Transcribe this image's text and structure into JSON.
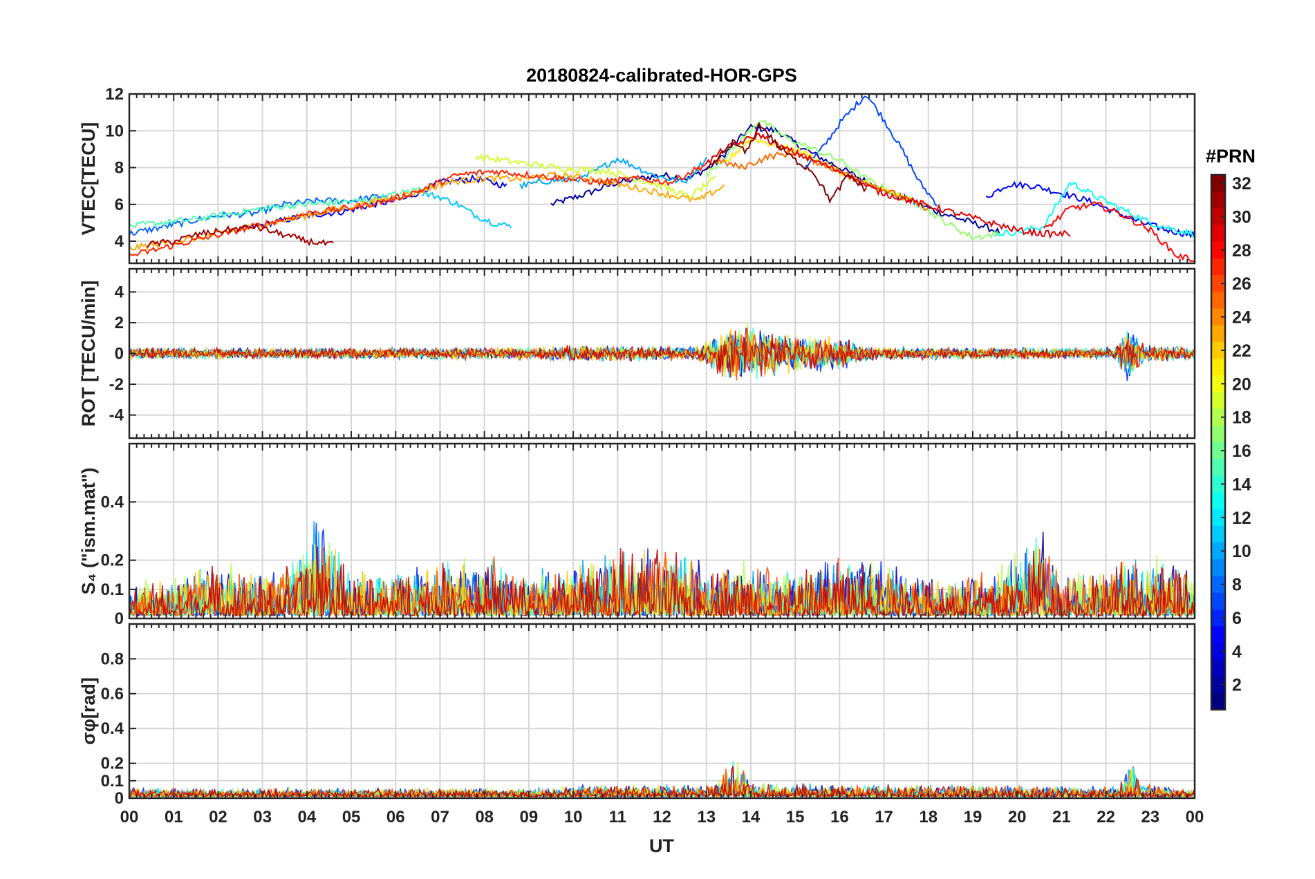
{
  "chart_data": {
    "type": "line",
    "title": "20180824-calibrated-HOR-GPS",
    "xlabel": "UT",
    "x_tick_labels": [
      "00",
      "01",
      "02",
      "03",
      "04",
      "05",
      "06",
      "07",
      "08",
      "09",
      "10",
      "11",
      "12",
      "13",
      "14",
      "15",
      "16",
      "17",
      "18",
      "19",
      "20",
      "21",
      "22",
      "23",
      "00"
    ],
    "xlim": [
      0,
      24
    ],
    "grid": true,
    "colorbar": {
      "label": "#PRN",
      "range": [
        1,
        32
      ],
      "ticks": [
        "2",
        "4",
        "6",
        "8",
        "10",
        "12",
        "14",
        "16",
        "18",
        "20",
        "22",
        "24",
        "26",
        "28",
        "30",
        "32"
      ],
      "colormap": "jet"
    },
    "panels": [
      {
        "id": "vtec",
        "ylabel": "VTEC[TECU]",
        "ylim": [
          2.8,
          12
        ],
        "yticks": [
          4,
          6,
          8,
          10,
          12
        ],
        "ytick_labels": [
          "4",
          "6",
          "8",
          "10",
          "12"
        ],
        "series": [
          {
            "prn": 2,
            "x": [
              9.5,
              10.2,
              11,
              12,
              12.6,
              13.2,
              14,
              14.6,
              15.2,
              16,
              16.8,
              17.5,
              18.2,
              19,
              19.6
            ],
            "y": [
              6.0,
              6.5,
              7.2,
              7.6,
              7.4,
              8.2,
              10.2,
              10.0,
              9.0,
              8.0,
              7.0,
              6.3,
              5.6,
              5.0,
              4.5
            ]
          },
          {
            "prn": 4,
            "x": [
              2.5,
              3.2,
              4,
              4.8,
              5.5,
              6.2,
              7,
              7.8,
              8.5
            ],
            "y": [
              4.6,
              5.0,
              5.4,
              5.6,
              6.0,
              6.3,
              7.2,
              7.4,
              7.0
            ]
          },
          {
            "prn": 5,
            "x": [
              19.3,
              19.8,
              20.4,
              21,
              21.6,
              22.2,
              22.8,
              23.4,
              24
            ],
            "y": [
              6.4,
              7.1,
              7.0,
              6.6,
              6.2,
              5.6,
              5.0,
              4.6,
              4.3
            ]
          },
          {
            "prn": 7,
            "x": [
              15.2,
              15.6,
              16,
              16.3,
              16.6,
              17,
              17.4,
              17.8,
              18.2
            ],
            "y": [
              8.0,
              9.0,
              10.4,
              11.2,
              12.0,
              10.6,
              9.0,
              7.2,
              6.0
            ]
          },
          {
            "prn": 8,
            "x": [
              0,
              0.6,
              1.2,
              2,
              2.8,
              3.5,
              4.3,
              5,
              5.8
            ],
            "y": [
              4.4,
              4.7,
              5.0,
              5.4,
              5.5,
              6.0,
              6.2,
              6.2,
              6.5
            ]
          },
          {
            "prn": 10,
            "x": [
              8.8,
              9.5,
              10.2,
              11,
              11.8,
              12.5,
              13
            ],
            "y": [
              7.0,
              7.3,
              7.4,
              8.5,
              7.6,
              7.2,
              8.5
            ]
          },
          {
            "prn": 11,
            "x": [
              6.6,
              7,
              7.4,
              7.8,
              8.2,
              8.6
            ],
            "y": [
              6.6,
              6.4,
              6.0,
              5.4,
              5.0,
              4.8
            ]
          },
          {
            "prn": 13,
            "x": [
              19.5,
              20,
              20.6,
              21.2,
              21.8,
              22.4,
              23,
              23.6,
              24
            ],
            "y": [
              4.4,
              4.5,
              4.8,
              7.2,
              6.4,
              5.7,
              5.0,
              4.6,
              4.4
            ]
          },
          {
            "prn": 15,
            "x": [
              0,
              0.7,
              1.5,
              2.3,
              3.1,
              3.9,
              4.6,
              5.3,
              6.1,
              6.8
            ],
            "y": [
              4.8,
              5.0,
              5.2,
              5.5,
              5.8,
              6.0,
              6.1,
              6.2,
              6.6,
              7.0
            ]
          },
          {
            "prn": 17,
            "x": [
              13,
              13.6,
              14.2,
              14.8,
              15.4,
              16,
              16.6,
              17.2,
              17.8,
              18.4,
              19,
              19.6
            ],
            "y": [
              7.6,
              9.0,
              10.6,
              9.6,
              9.0,
              8.4,
              7.4,
              6.6,
              6.0,
              5.0,
              4.2,
              4.4
            ]
          },
          {
            "prn": 19,
            "x": [
              7.8,
              8.4,
              9,
              9.6,
              10.2,
              10.8,
              11.4,
              12,
              12.6,
              13.2
            ],
            "y": [
              8.6,
              8.4,
              8.2,
              8.0,
              7.9,
              7.8,
              7.4,
              7.0,
              6.4,
              7.4
            ]
          },
          {
            "prn": 21,
            "x": [
              13.4,
              14,
              14.6,
              15.2,
              15.8,
              16.4,
              17,
              17.6
            ],
            "y": [
              8.2,
              9.6,
              9.2,
              8.8,
              8.0,
              7.3,
              6.8,
              6.2
            ]
          },
          {
            "prn": 23,
            "x": [
              0,
              0.8,
              1.6,
              2.4,
              3.2,
              4,
              4.8,
              5.6,
              6.4,
              7.2,
              8,
              8.8,
              9.6,
              10.4,
              11.2,
              12,
              12.8,
              13.4
            ],
            "y": [
              3.6,
              3.9,
              4.2,
              4.6,
              5.0,
              5.4,
              5.8,
              6.2,
              6.6,
              7.2,
              7.4,
              7.4,
              7.6,
              7.4,
              7.0,
              6.6,
              6.2,
              7.0
            ]
          },
          {
            "prn": 25,
            "x": [
              13.2,
              13.8,
              14.4,
              15,
              15.6,
              16.2,
              16.8,
              17.4,
              18
            ],
            "y": [
              8.4,
              8.0,
              8.6,
              8.8,
              8.2,
              7.6,
              7.0,
              6.4,
              5.8
            ]
          },
          {
            "prn": 27,
            "x": [
              0,
              0.7,
              1.4,
              2.1,
              2.8,
              3.5,
              4.2,
              5,
              5.8,
              6.6,
              7.4,
              8.2,
              9,
              9.8,
              10.6,
              11.4,
              12.2,
              13
            ],
            "y": [
              3.2,
              3.6,
              4.0,
              4.4,
              4.8,
              5.2,
              5.6,
              5.8,
              6.2,
              6.8,
              7.6,
              7.8,
              7.6,
              7.4,
              7.2,
              7.4,
              7.2,
              8.2
            ]
          },
          {
            "prn": 28,
            "x": [
              20.6,
              21.2,
              21.8,
              22.4,
              23,
              23.6,
              24
            ],
            "y": [
              4.6,
              5.8,
              6.0,
              5.4,
              4.6,
              3.2,
              3.0
            ]
          },
          {
            "prn": 29,
            "x": [
              13,
              13.4,
              13.8,
              14.2,
              14.6,
              15,
              15.4,
              15.8,
              16.2,
              16.6,
              17,
              17.6,
              18.2,
              18.8,
              19.4,
              20,
              20.6,
              21.2
            ],
            "y": [
              8.2,
              9.0,
              9.4,
              9.8,
              9.2,
              8.8,
              8.4,
              8.0,
              7.6,
              7.0,
              6.6,
              6.2,
              5.8,
              5.4,
              5.0,
              4.6,
              4.4,
              4.4
            ]
          },
          {
            "prn": 31,
            "x": [
              0.4,
              1,
              1.6,
              2.2,
              2.8,
              3.4,
              4,
              4.6
            ],
            "y": [
              3.8,
              4.0,
              4.4,
              4.6,
              4.8,
              4.4,
              4.0,
              3.8
            ]
          },
          {
            "prn": 32,
            "x": [
              13,
              13.3,
              13.6,
              13.9,
              14.2,
              14.6,
              15,
              15.4,
              15.8,
              16.2,
              16.6
            ],
            "y": [
              7.8,
              8.6,
              9.4,
              8.8,
              10.4,
              9.2,
              8.4,
              7.8,
              6.2,
              7.6,
              6.8
            ]
          }
        ]
      },
      {
        "id": "rot",
        "ylabel": "ROT [TECU/min]",
        "ylim": [
          -5.5,
          5.5
        ],
        "yticks": [
          -4,
          -2,
          0,
          2,
          4
        ],
        "ytick_labels": [
          "-4",
          "-2",
          "0",
          "2",
          "4"
        ],
        "noise_envelope": {
          "x": [
            0,
            5,
            9.5,
            10,
            12.8,
            13.2,
            13.5,
            14,
            15,
            16,
            16.4,
            17,
            19,
            22.2,
            22.5,
            22.9,
            24
          ],
          "amplitude": [
            0.4,
            0.4,
            0.45,
            0.6,
            0.5,
            1.4,
            2.2,
            2.0,
            1.3,
            1.3,
            0.7,
            0.45,
            0.4,
            0.4,
            2.0,
            0.6,
            0.45
          ]
        }
      },
      {
        "id": "s4",
        "ylabel": "S₄ (\"ism.mat\")",
        "ylim": [
          0,
          0.6
        ],
        "yticks": [
          0,
          0.1,
          0.2,
          0.4
        ],
        "ytick_labels": [
          "0",
          "0.1",
          "0.2",
          "0.4"
        ],
        "noise_envelope": {
          "x": [
            0,
            1,
            2,
            3,
            4,
            4.2,
            5,
            6,
            7,
            8,
            9,
            10,
            11,
            12,
            13,
            14,
            15,
            16,
            17,
            18,
            19,
            20,
            20.5,
            21,
            22,
            23,
            24
          ],
          "amplitude": [
            0.12,
            0.15,
            0.2,
            0.15,
            0.25,
            0.4,
            0.15,
            0.18,
            0.2,
            0.22,
            0.15,
            0.2,
            0.25,
            0.26,
            0.18,
            0.2,
            0.16,
            0.22,
            0.2,
            0.15,
            0.14,
            0.22,
            0.35,
            0.15,
            0.2,
            0.22,
            0.15
          ]
        }
      },
      {
        "id": "sigma_phi",
        "ylabel": "σφ[rad]",
        "ylim": [
          0,
          1.0
        ],
        "yticks": [
          0,
          0.1,
          0.2,
          0.4,
          0.6,
          0.8
        ],
        "ytick_labels": [
          "0",
          "0.1",
          "0.2",
          "0.4",
          "0.6",
          "0.8"
        ],
        "noise_envelope": {
          "x": [
            0,
            9.5,
            10,
            13.2,
            13.5,
            13.7,
            14,
            22.3,
            22.6,
            22.8,
            24
          ],
          "amplitude": [
            0.05,
            0.05,
            0.07,
            0.08,
            0.2,
            0.3,
            0.08,
            0.06,
            0.25,
            0.08,
            0.04
          ]
        }
      }
    ]
  }
}
